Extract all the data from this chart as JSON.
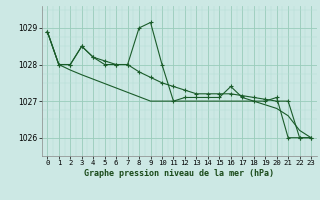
{
  "title": "Graphe pression niveau de la mer (hPa)",
  "bg_color": "#cce8e4",
  "grid_color_major": "#99ccbb",
  "grid_color_minor": "#b5ddd5",
  "line_color": "#1a5c2a",
  "xlim": [
    -0.5,
    23.5
  ],
  "ylim": [
    1025.5,
    1029.6
  ],
  "yticks": [
    1026,
    1027,
    1028,
    1029
  ],
  "xticks": [
    0,
    1,
    2,
    3,
    4,
    5,
    6,
    7,
    8,
    9,
    10,
    11,
    12,
    13,
    14,
    15,
    16,
    17,
    18,
    19,
    20,
    21,
    22,
    23
  ],
  "series": [
    [
      1028.9,
      1028.0,
      1028.0,
      1028.5,
      1028.2,
      1028.0,
      1028.0,
      1028.0,
      1029.0,
      1029.15,
      1028.0,
      1027.0,
      1027.1,
      1027.1,
      1027.1,
      1027.1,
      1027.4,
      1027.1,
      1027.0,
      1027.0,
      1027.1,
      1026.0,
      1026.0,
      1026.0
    ],
    [
      1028.9,
      1028.0,
      1028.0,
      1028.5,
      1028.2,
      1028.1,
      1028.0,
      1028.0,
      1027.8,
      1027.65,
      1027.5,
      1027.4,
      1027.3,
      1027.2,
      1027.2,
      1027.2,
      1027.2,
      1027.15,
      1027.1,
      1027.05,
      1027.0,
      1027.0,
      1026.0,
      1026.0
    ],
    [
      1028.9,
      1028.0,
      1027.85,
      1027.72,
      1027.6,
      1027.48,
      1027.36,
      1027.24,
      1027.12,
      1027.0,
      1027.0,
      1027.0,
      1027.0,
      1027.0,
      1027.0,
      1027.0,
      1027.0,
      1027.0,
      1027.0,
      1026.9,
      1026.8,
      1026.6,
      1026.2,
      1026.0
    ]
  ]
}
